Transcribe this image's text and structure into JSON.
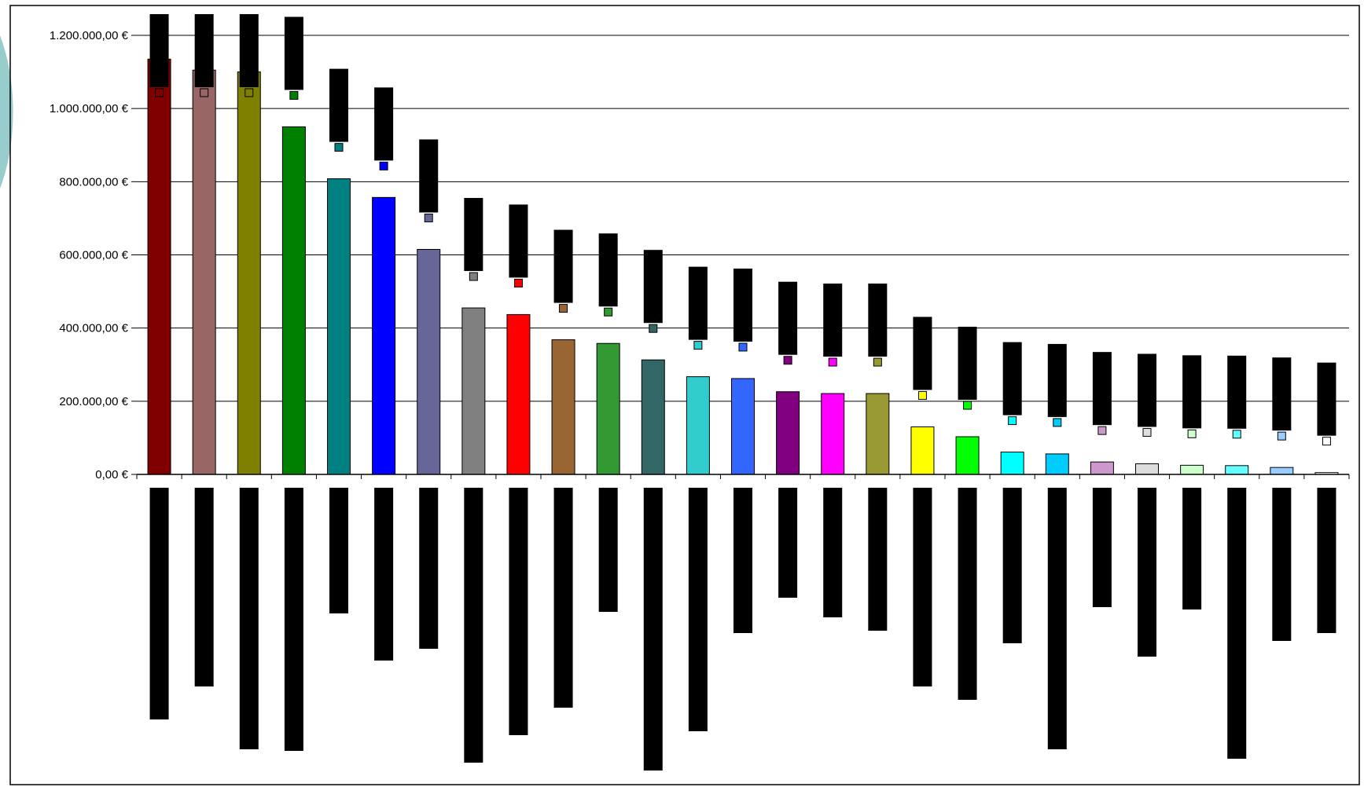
{
  "chart_data": {
    "type": "bar",
    "title": "",
    "xlabel": "",
    "ylabel": "",
    "ylim": [
      0,
      1200000
    ],
    "y_ticks": [
      {
        "value": 0,
        "label": "0,00 €"
      },
      {
        "value": 200000,
        "label": "200.000,00 €"
      },
      {
        "value": 400000,
        "label": "400.000,00 €"
      },
      {
        "value": 600000,
        "label": "600.000,00 €"
      },
      {
        "value": 800000,
        "label": "800.000,00 €"
      },
      {
        "value": 1000000,
        "label": "1.000.000,00 €"
      },
      {
        "value": 1200000,
        "label": "1.200.000,00 €"
      }
    ],
    "grid": true,
    "category_labels_redacted": true,
    "bars": [
      {
        "value": 1135000,
        "color": "#800000"
      },
      {
        "value": 1105000,
        "color": "#996666"
      },
      {
        "value": 1100000,
        "color": "#808000"
      },
      {
        "value": 950000,
        "color": "#008000"
      },
      {
        "value": 808000,
        "color": "#008080"
      },
      {
        "value": 757000,
        "color": "#0000ff"
      },
      {
        "value": 615000,
        "color": "#666699"
      },
      {
        "value": 455000,
        "color": "#808080"
      },
      {
        "value": 437000,
        "color": "#ff0000"
      },
      {
        "value": 368000,
        "color": "#996633"
      },
      {
        "value": 358000,
        "color": "#339933"
      },
      {
        "value": 313000,
        "color": "#336666"
      },
      {
        "value": 267000,
        "color": "#33cccc"
      },
      {
        "value": 262000,
        "color": "#3366ff"
      },
      {
        "value": 226000,
        "color": "#800080"
      },
      {
        "value": 221000,
        "color": "#ff00ff"
      },
      {
        "value": 221000,
        "color": "#999933"
      },
      {
        "value": 130000,
        "color": "#ffff00"
      },
      {
        "value": 103000,
        "color": "#00ff00"
      },
      {
        "value": 61000,
        "color": "#00ffff"
      },
      {
        "value": 56000,
        "color": "#00ccff"
      },
      {
        "value": 34000,
        "color": "#cc99cc"
      },
      {
        "value": 29000,
        "color": "#dddddd"
      },
      {
        "value": 25000,
        "color": "#ccffcc"
      },
      {
        "value": 24000,
        "color": "#66ffff"
      },
      {
        "value": 19000,
        "color": "#99ccff"
      },
      {
        "value": 5000,
        "color": "#ffffff"
      }
    ]
  }
}
